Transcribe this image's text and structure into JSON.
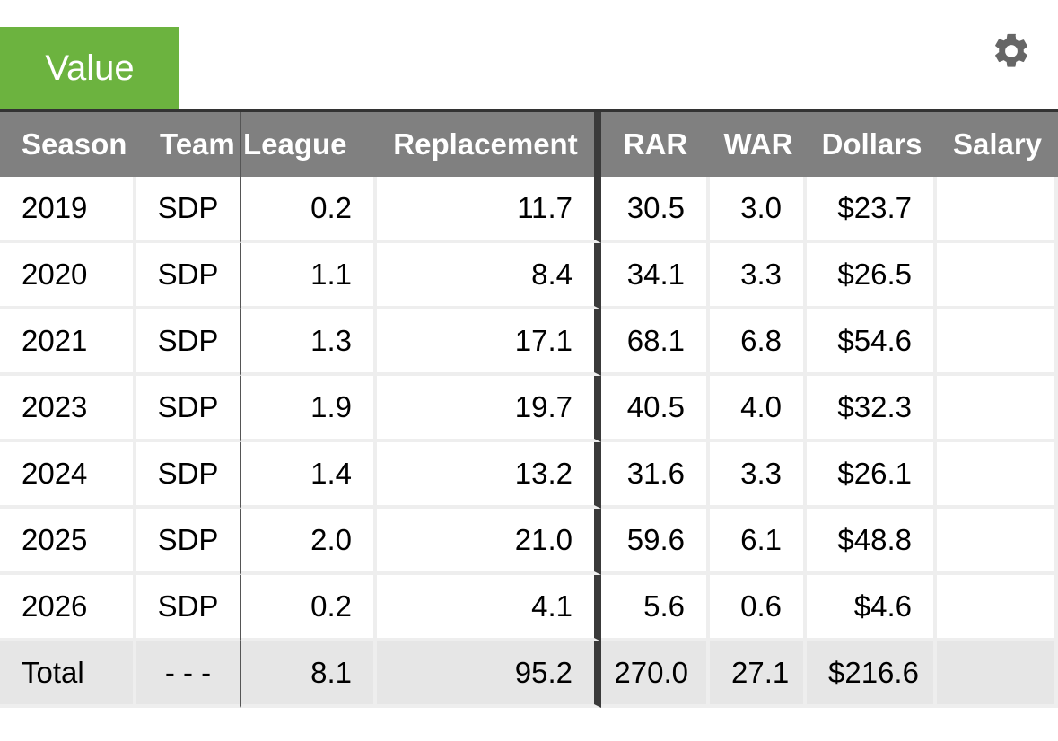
{
  "tab": {
    "label": "Value"
  },
  "toolbar": {
    "settings_icon": "gear-icon"
  },
  "table": {
    "headers": [
      "Season",
      "Team",
      "League",
      "Replacement",
      "RAR",
      "WAR",
      "Dollars",
      "Salary"
    ],
    "rows": [
      [
        "2019",
        "SDP",
        "0.2",
        "11.7",
        "30.5",
        "3.0",
        "$23.7",
        ""
      ],
      [
        "2020",
        "SDP",
        "1.1",
        "8.4",
        "34.1",
        "3.3",
        "$26.5",
        ""
      ],
      [
        "2021",
        "SDP",
        "1.3",
        "17.1",
        "68.1",
        "6.8",
        "$54.6",
        ""
      ],
      [
        "2023",
        "SDP",
        "1.9",
        "19.7",
        "40.5",
        "4.0",
        "$32.3",
        ""
      ],
      [
        "2024",
        "SDP",
        "1.4",
        "13.2",
        "31.6",
        "3.3",
        "$26.1",
        ""
      ],
      [
        "2025",
        "SDP",
        "2.0",
        "21.0",
        "59.6",
        "6.1",
        "$48.8",
        ""
      ],
      [
        "2026",
        "SDP",
        "0.2",
        "4.1",
        "5.6",
        "0.6",
        "$4.6",
        ""
      ]
    ],
    "total": [
      "Total",
      "- - -",
      "8.1",
      "95.2",
      "270.0",
      "27.1",
      "$216.6",
      ""
    ]
  },
  "colors": {
    "tab_green": "#6cb33f",
    "header_gray": "#808080",
    "total_row": "#e6e6e6"
  }
}
